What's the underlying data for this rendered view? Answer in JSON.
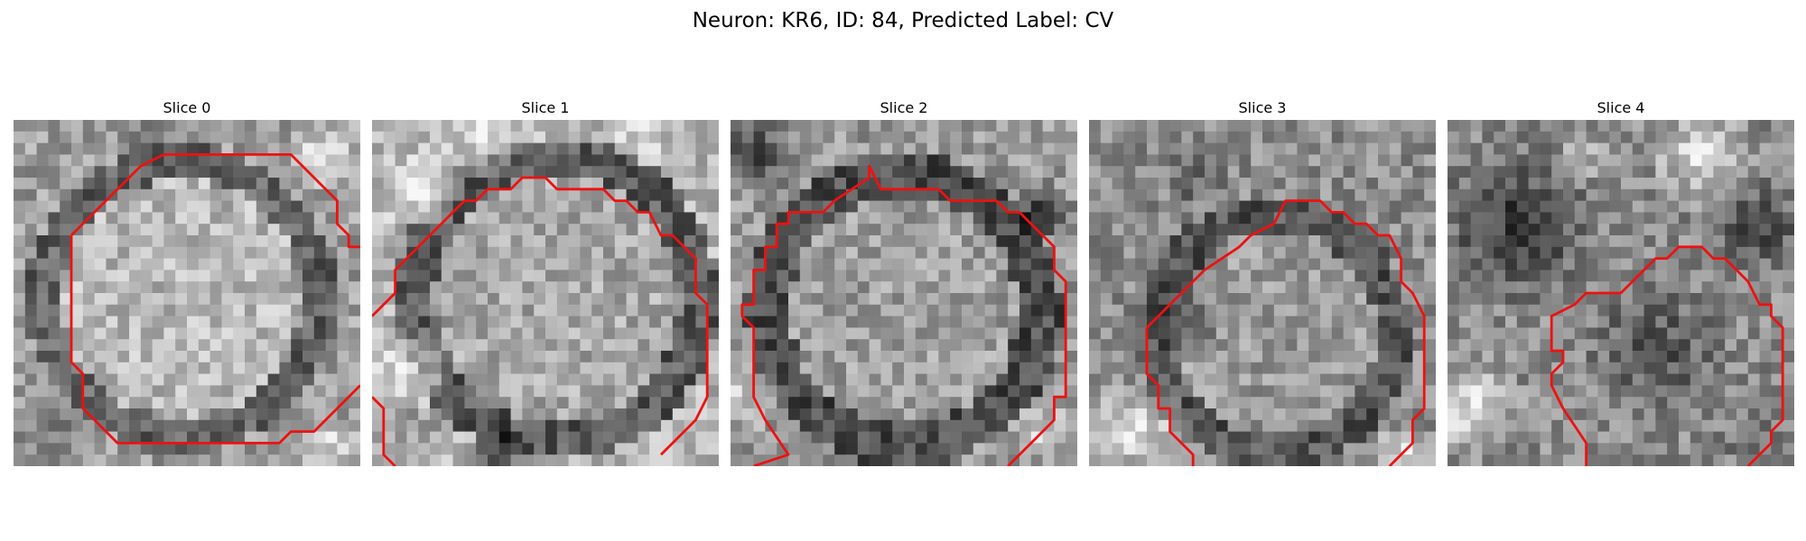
{
  "figure": {
    "title": "Neuron: KR6, ID: 84, Predicted Label: CV"
  },
  "panels": [
    {
      "label": "Slice 0"
    },
    {
      "label": "Slice 1"
    },
    {
      "label": "Slice 2"
    },
    {
      "label": "Slice 3"
    },
    {
      "label": "Slice 4"
    }
  ],
  "colors": {
    "contour": "#ee1111",
    "background": "#ffffff"
  }
}
